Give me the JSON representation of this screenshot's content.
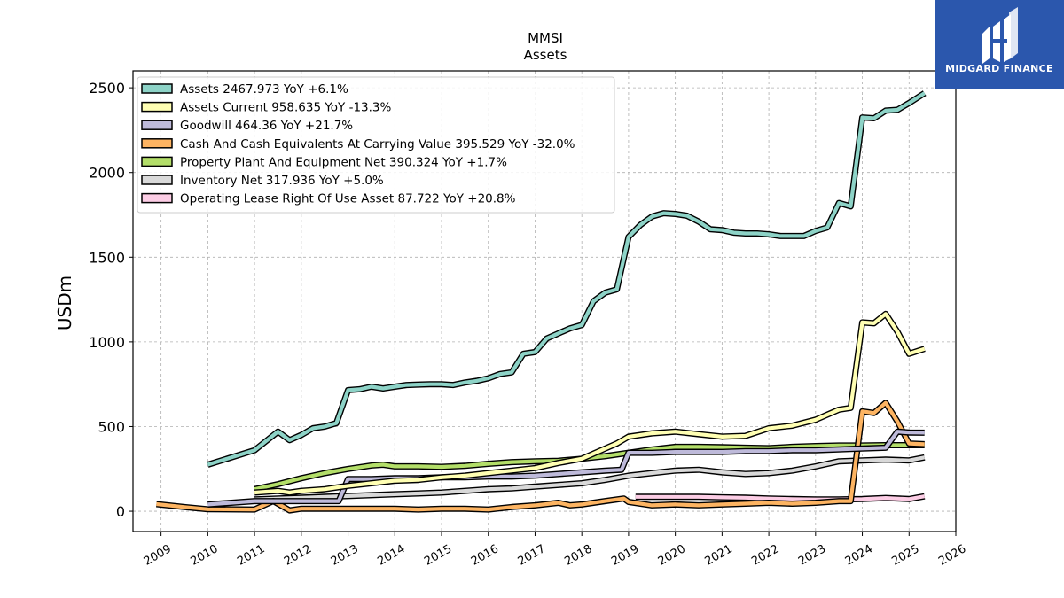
{
  "brand": {
    "name": "MIDGARD FINANCE",
    "bg_color": "#2b57ad"
  },
  "chart_data": {
    "type": "line",
    "title": "MMSI",
    "subtitle": "Assets",
    "ylabel": "USDm",
    "xlabel": "",
    "xlim": [
      2008.4,
      2026.0
    ],
    "ylim": [
      -120,
      2600
    ],
    "x_ticks": [
      2009,
      2010,
      2011,
      2012,
      2013,
      2014,
      2015,
      2016,
      2017,
      2018,
      2019,
      2020,
      2021,
      2022,
      2023,
      2024,
      2025,
      2026
    ],
    "y_ticks": [
      0,
      500,
      1000,
      1500,
      2000,
      2500
    ],
    "grid": true,
    "legend_position": "top-left",
    "series": [
      {
        "name": "Assets",
        "legend": "Assets  2467.973 YoY +6.1%",
        "color": "#8dd3c7",
        "x": [
          2010.0,
          2011.0,
          2011.5,
          2011.75,
          2012.0,
          2012.25,
          2012.5,
          2012.75,
          2013.0,
          2013.25,
          2013.5,
          2013.75,
          2014.0,
          2014.25,
          2014.5,
          2014.75,
          2015.0,
          2015.25,
          2015.5,
          2015.75,
          2016.0,
          2016.25,
          2016.5,
          2016.75,
          2017.0,
          2017.25,
          2017.5,
          2017.75,
          2018.0,
          2018.25,
          2018.5,
          2018.75,
          2019.0,
          2019.25,
          2019.5,
          2019.75,
          2020.0,
          2020.25,
          2020.5,
          2020.75,
          2021.0,
          2021.25,
          2021.5,
          2021.75,
          2022.0,
          2022.25,
          2022.5,
          2022.75,
          2023.0,
          2023.25,
          2023.5,
          2023.75,
          2024.0,
          2024.25,
          2024.5,
          2024.75,
          2025.0,
          2025.33
        ],
        "y": [
          275,
          360,
          470,
          420,
          450,
          490,
          500,
          520,
          715,
          720,
          735,
          725,
          735,
          745,
          748,
          750,
          750,
          745,
          760,
          770,
          785,
          810,
          820,
          930,
          940,
          1020,
          1050,
          1080,
          1100,
          1240,
          1290,
          1310,
          1620,
          1690,
          1740,
          1760,
          1755,
          1745,
          1710,
          1665,
          1660,
          1645,
          1640,
          1640,
          1635,
          1625,
          1625,
          1625,
          1655,
          1675,
          1820,
          1800,
          2325,
          2320,
          2365,
          2370,
          2410,
          2468
        ]
      },
      {
        "name": "Assets Current",
        "legend": "Assets Current  958.635 YoY -13.3%",
        "color": "#ffffb3",
        "x": [
          2011.0,
          2011.5,
          2011.75,
          2012.0,
          2012.5,
          2013.0,
          2013.5,
          2014.0,
          2014.5,
          2015.0,
          2015.5,
          2016.0,
          2016.5,
          2017.0,
          2017.5,
          2018.0,
          2018.5,
          2018.75,
          2019.0,
          2019.5,
          2020.0,
          2020.5,
          2021.0,
          2021.5,
          2022.0,
          2022.5,
          2023.0,
          2023.5,
          2023.75,
          2024.0,
          2024.25,
          2024.5,
          2024.75,
          2025.0,
          2025.33
        ],
        "y": [
          110,
          120,
          110,
          120,
          130,
          150,
          165,
          180,
          185,
          200,
          210,
          225,
          240,
          255,
          285,
          310,
          370,
          400,
          440,
          460,
          470,
          455,
          440,
          445,
          490,
          505,
          540,
          600,
          610,
          1115,
          1110,
          1165,
          1060,
          930,
          959
        ]
      },
      {
        "name": "Goodwill",
        "legend": "Goodwill  464.36 YoY +21.7%",
        "color": "#bebada",
        "x": [
          2010.0,
          2011.0,
          2011.5,
          2012.0,
          2012.5,
          2012.8,
          2013.0,
          2013.5,
          2014.0,
          2014.5,
          2015.0,
          2015.5,
          2016.0,
          2016.5,
          2017.0,
          2017.5,
          2018.0,
          2018.5,
          2018.85,
          2019.0,
          2019.5,
          2020.0,
          2020.5,
          2021.0,
          2021.5,
          2022.0,
          2022.5,
          2023.0,
          2023.5,
          2024.0,
          2024.5,
          2024.75,
          2025.0,
          2025.33
        ],
        "y": [
          40,
          60,
          60,
          60,
          60,
          60,
          190,
          190,
          195,
          195,
          200,
          200,
          205,
          205,
          210,
          220,
          230,
          240,
          245,
          345,
          345,
          350,
          350,
          350,
          355,
          355,
          360,
          360,
          365,
          370,
          375,
          470,
          465,
          464
        ]
      },
      {
        "name": "Cash And Cash Equivalents At Carrying Value",
        "legend": "Cash And Cash Equivalents At Carrying Value  395.529 YoY -32.0%",
        "color": "#fdb462",
        "x": [
          2008.9,
          2009.5,
          2010.0,
          2011.0,
          2011.4,
          2011.75,
          2012.0,
          2012.5,
          2013.0,
          2013.5,
          2014.0,
          2014.5,
          2015.0,
          2015.5,
          2016.0,
          2016.5,
          2017.0,
          2017.5,
          2017.75,
          2018.0,
          2018.5,
          2018.9,
          2019.0,
          2019.5,
          2020.0,
          2020.5,
          2021.0,
          2021.5,
          2022.0,
          2022.5,
          2023.0,
          2023.5,
          2023.75,
          2024.0,
          2024.25,
          2024.5,
          2024.75,
          2025.0,
          2025.33
        ],
        "y": [
          42,
          25,
          12,
          10,
          60,
          5,
          15,
          15,
          15,
          15,
          15,
          10,
          15,
          15,
          10,
          25,
          35,
          50,
          35,
          40,
          60,
          75,
          55,
          35,
          40,
          35,
          40,
          45,
          50,
          45,
          50,
          60,
          60,
          590,
          580,
          640,
          530,
          400,
          396
        ]
      },
      {
        "name": "Property Plant And Equipment Net",
        "legend": "Property Plant And Equipment Net  390.324 YoY +1.7%",
        "color": "#b3de69",
        "x": [
          2011.0,
          2011.5,
          2012.0,
          2012.5,
          2013.0,
          2013.5,
          2013.75,
          2014.0,
          2014.5,
          2015.0,
          2015.5,
          2016.0,
          2016.5,
          2017.0,
          2017.5,
          2018.0,
          2018.5,
          2019.0,
          2019.5,
          2020.0,
          2020.5,
          2021.0,
          2021.5,
          2022.0,
          2022.5,
          2023.0,
          2023.5,
          2024.0,
          2024.5,
          2025.0,
          2025.33
        ],
        "y": [
          130,
          160,
          195,
          225,
          250,
          270,
          275,
          265,
          265,
          262,
          268,
          280,
          290,
          295,
          298,
          310,
          325,
          345,
          365,
          380,
          380,
          378,
          375,
          372,
          380,
          385,
          388,
          388,
          390,
          390,
          390
        ]
      },
      {
        "name": "Inventory Net",
        "legend": "Inventory Net  317.936 YoY +5.0%",
        "color": "#d9d9d9",
        "x": [
          2011.0,
          2011.5,
          2012.0,
          2012.5,
          2013.0,
          2013.5,
          2014.0,
          2014.5,
          2015.0,
          2015.5,
          2016.0,
          2016.5,
          2017.0,
          2017.5,
          2018.0,
          2018.5,
          2019.0,
          2019.5,
          2020.0,
          2020.5,
          2021.0,
          2021.5,
          2022.0,
          2022.5,
          2023.0,
          2023.5,
          2024.0,
          2024.5,
          2025.0,
          2025.33
        ],
        "y": [
          70,
          75,
          80,
          85,
          90,
          95,
          100,
          105,
          110,
          120,
          130,
          135,
          145,
          155,
          165,
          185,
          210,
          225,
          240,
          245,
          230,
          220,
          225,
          240,
          265,
          295,
          300,
          305,
          300,
          318
        ]
      },
      {
        "name": "Operating Lease Right Of Use Asset",
        "legend": "Operating Lease Right Of Use Asset  87.722 YoY +20.8%",
        "color": "#fccde5",
        "x": [
          2019.15,
          2019.5,
          2020.0,
          2020.5,
          2021.0,
          2021.5,
          2022.0,
          2022.5,
          2023.0,
          2023.5,
          2024.0,
          2024.5,
          2025.0,
          2025.33
        ],
        "y": [
          85,
          85,
          85,
          85,
          82,
          80,
          75,
          72,
          70,
          70,
          72,
          78,
          72,
          88
        ]
      }
    ]
  }
}
